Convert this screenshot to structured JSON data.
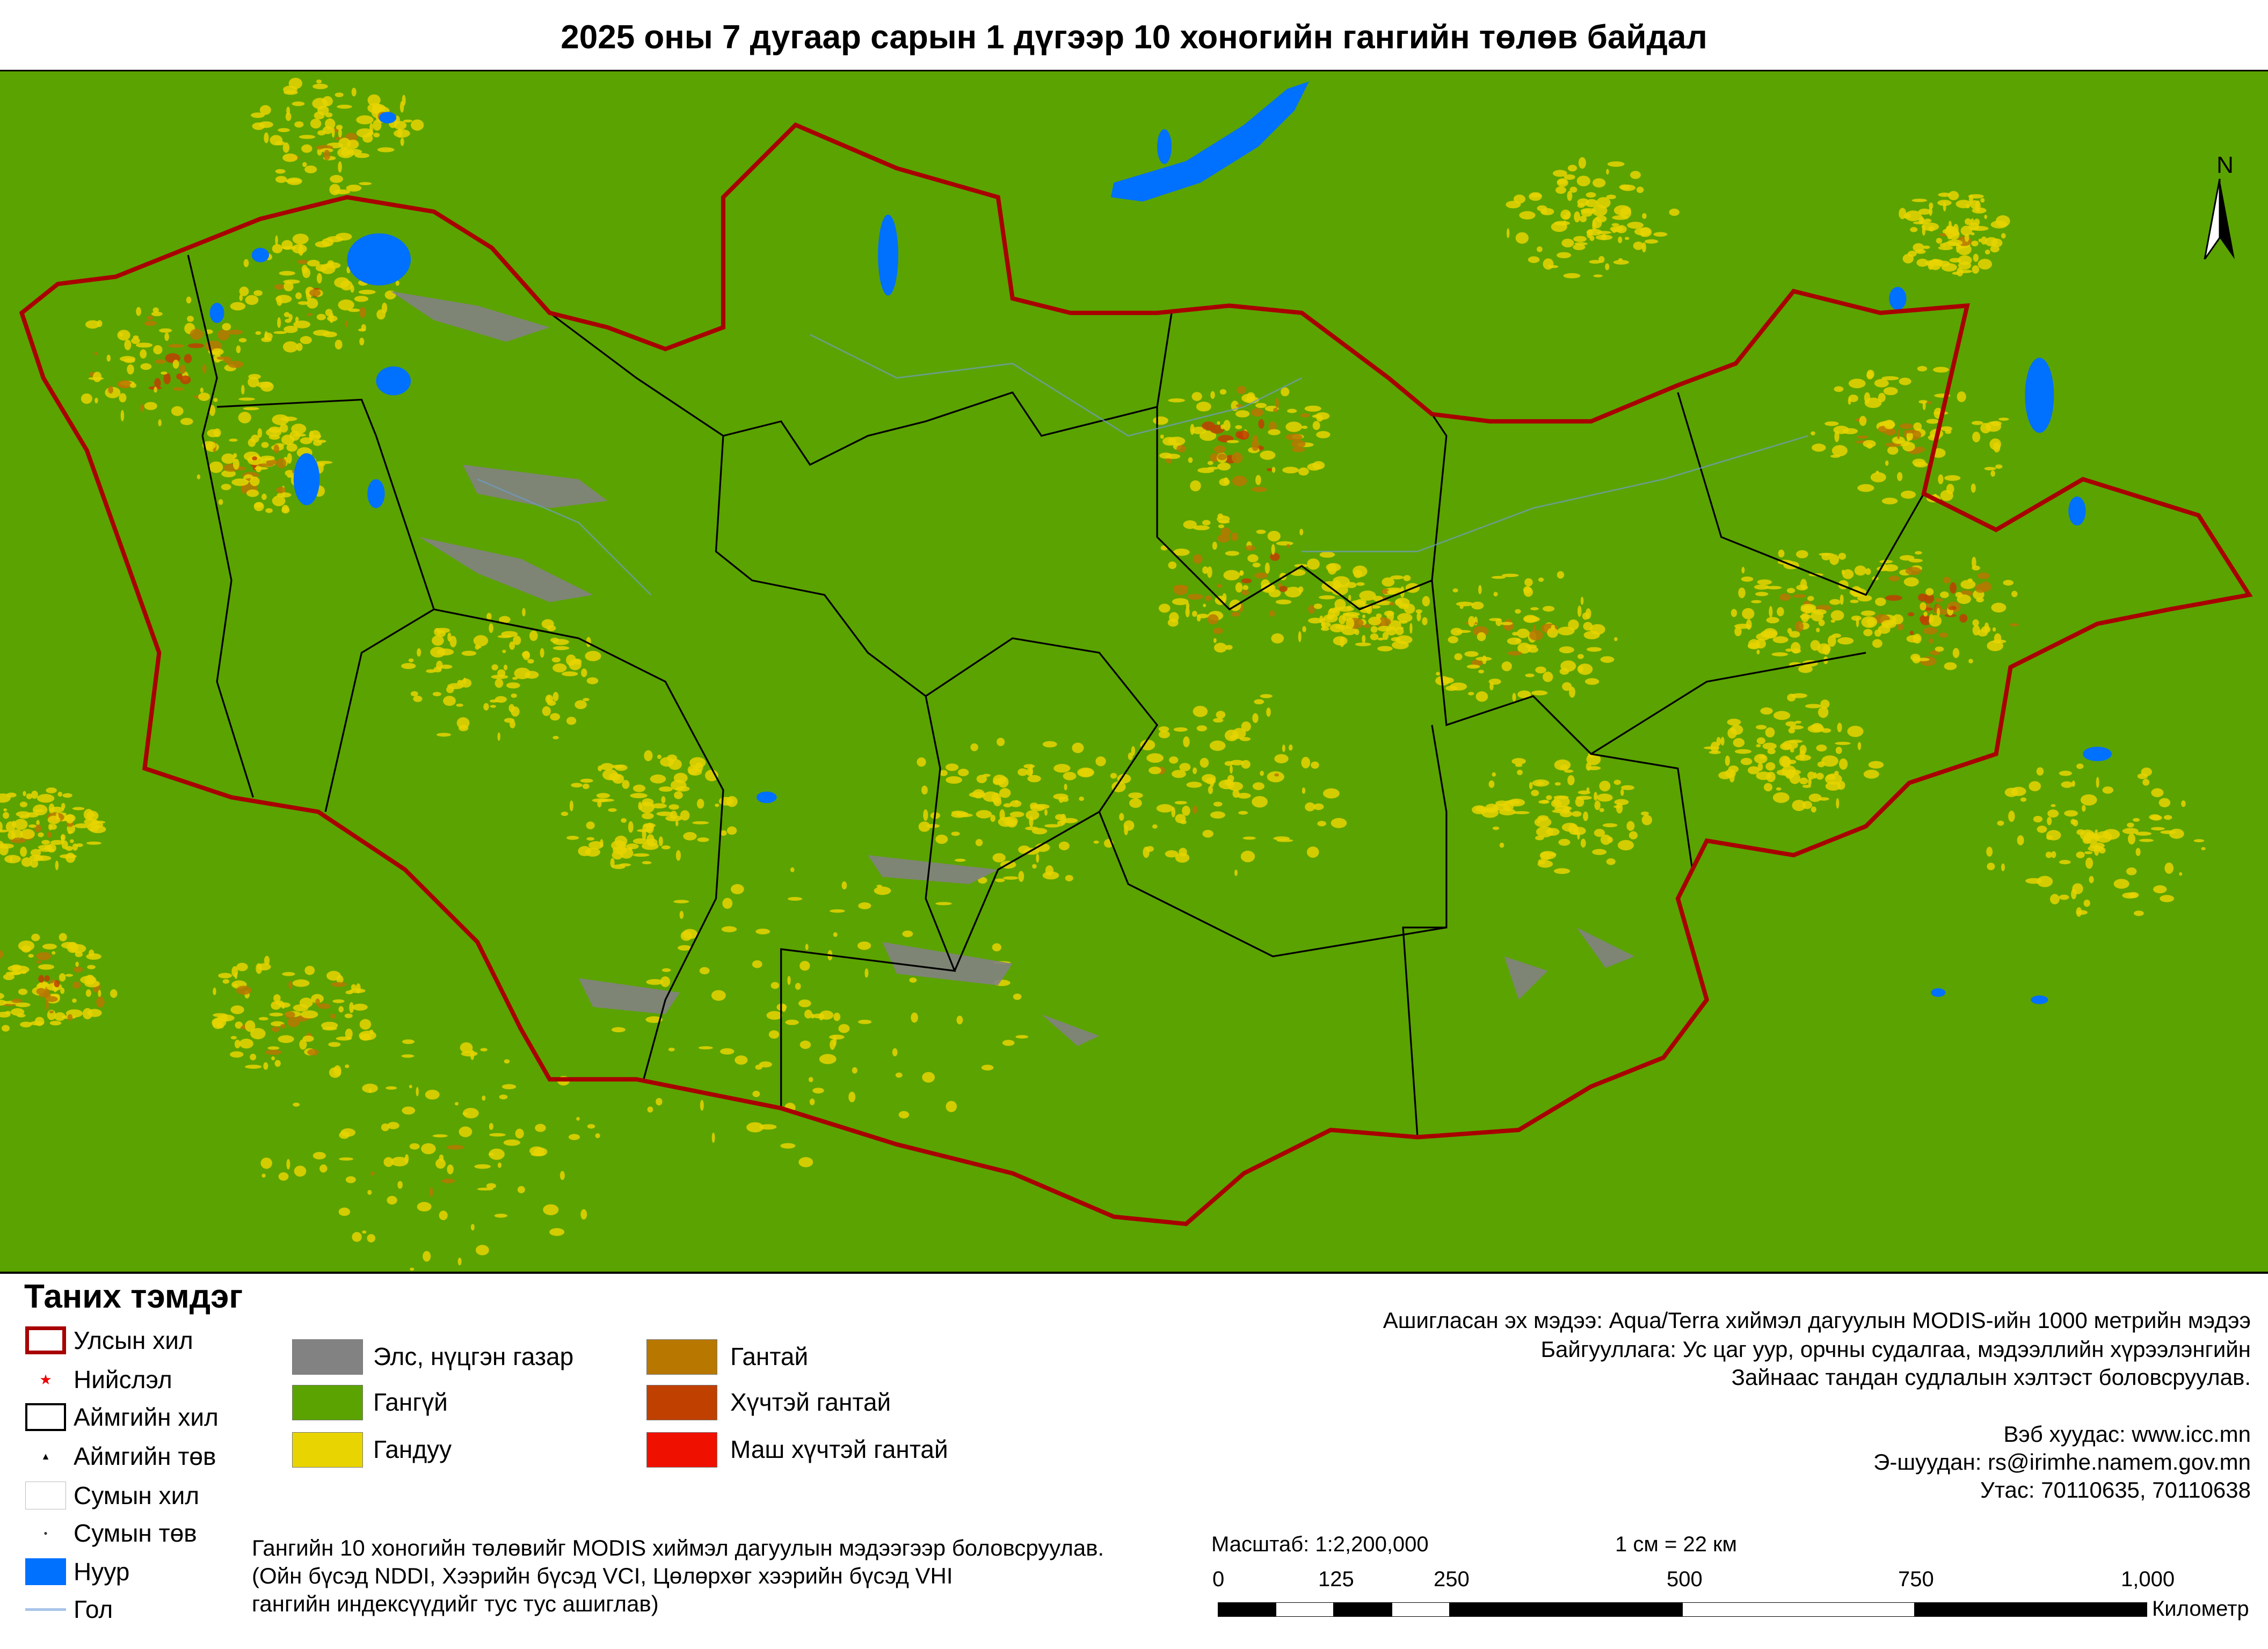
{
  "title": "2025 оны 7 дугаар сарын 1 дүгээр 10 хоногийн гангийн төлөв байдал",
  "north_label": "N",
  "legend": {
    "title": "Таних тэмдэг",
    "symbols": [
      {
        "label": "Улсын хил",
        "icon": "national-border"
      },
      {
        "label": "Нийслэл",
        "icon": "capital-star"
      },
      {
        "label": "Аймгийн хил",
        "icon": "province-border"
      },
      {
        "label": "Аймгийн төв",
        "icon": "province-center"
      },
      {
        "label": "Сумын хил",
        "icon": "soum-border"
      },
      {
        "label": "Сумын төв",
        "icon": "soum-center"
      },
      {
        "label": "Нуур",
        "icon": "lake"
      },
      {
        "label": "Гол",
        "icon": "river"
      }
    ],
    "classes": [
      {
        "label": "Элс, нүцгэн газар",
        "color": "#828282"
      },
      {
        "label": "Гангүй",
        "color": "#5ba300"
      },
      {
        "label": "Гандуу",
        "color": "#e8d400"
      },
      {
        "label": "Гантай",
        "color": "#b87800"
      },
      {
        "label": "Хүчтэй гантай",
        "color": "#c04000"
      },
      {
        "label": "Маш хүчтэй гантай",
        "color": "#f01000"
      }
    ]
  },
  "colors": {
    "border": "#a80000",
    "lake": "#0070ff",
    "river": "#a8c4e8",
    "background": "#5ba300"
  },
  "credits": {
    "source": "Ашигласан эх мэдээ: Aqua/Terra хиймэл дагуулын MODIS-ийн 1000 метрийн мэдээ",
    "org1": "Байгууллага: Ус цаг уур, орчны судалгаа, мэдээллийн хүрээлэнгийн",
    "org2": "Зайнаас тандан судлалын хэлтэст боловсруулав.",
    "web": "Вэб хуудас: www.icc.mn",
    "email": "Э-шуудан: rs@irimhe.namem.gov.mn",
    "phone": "Утас: 70110635, 70110638"
  },
  "note": [
    "Гангийн 10 хоногийн төлөвийг MODIS хиймэл дагуулын мэдээгээр боловсруулав.",
    "(Ойн бүсэд NDDI, Хээрийн бүсэд VCI, Цөлөрхөг хээрийн бүсэд VHI",
    "гангийн индексүүдийг тус тус ашиглав)"
  ],
  "scale": {
    "ratio": "Масштаб: 1:2,200,000",
    "equiv": "1 см = 22 км",
    "ticks": [
      "0",
      "125",
      "250",
      "500",
      "750",
      "1,000"
    ],
    "unit": "Километр"
  }
}
